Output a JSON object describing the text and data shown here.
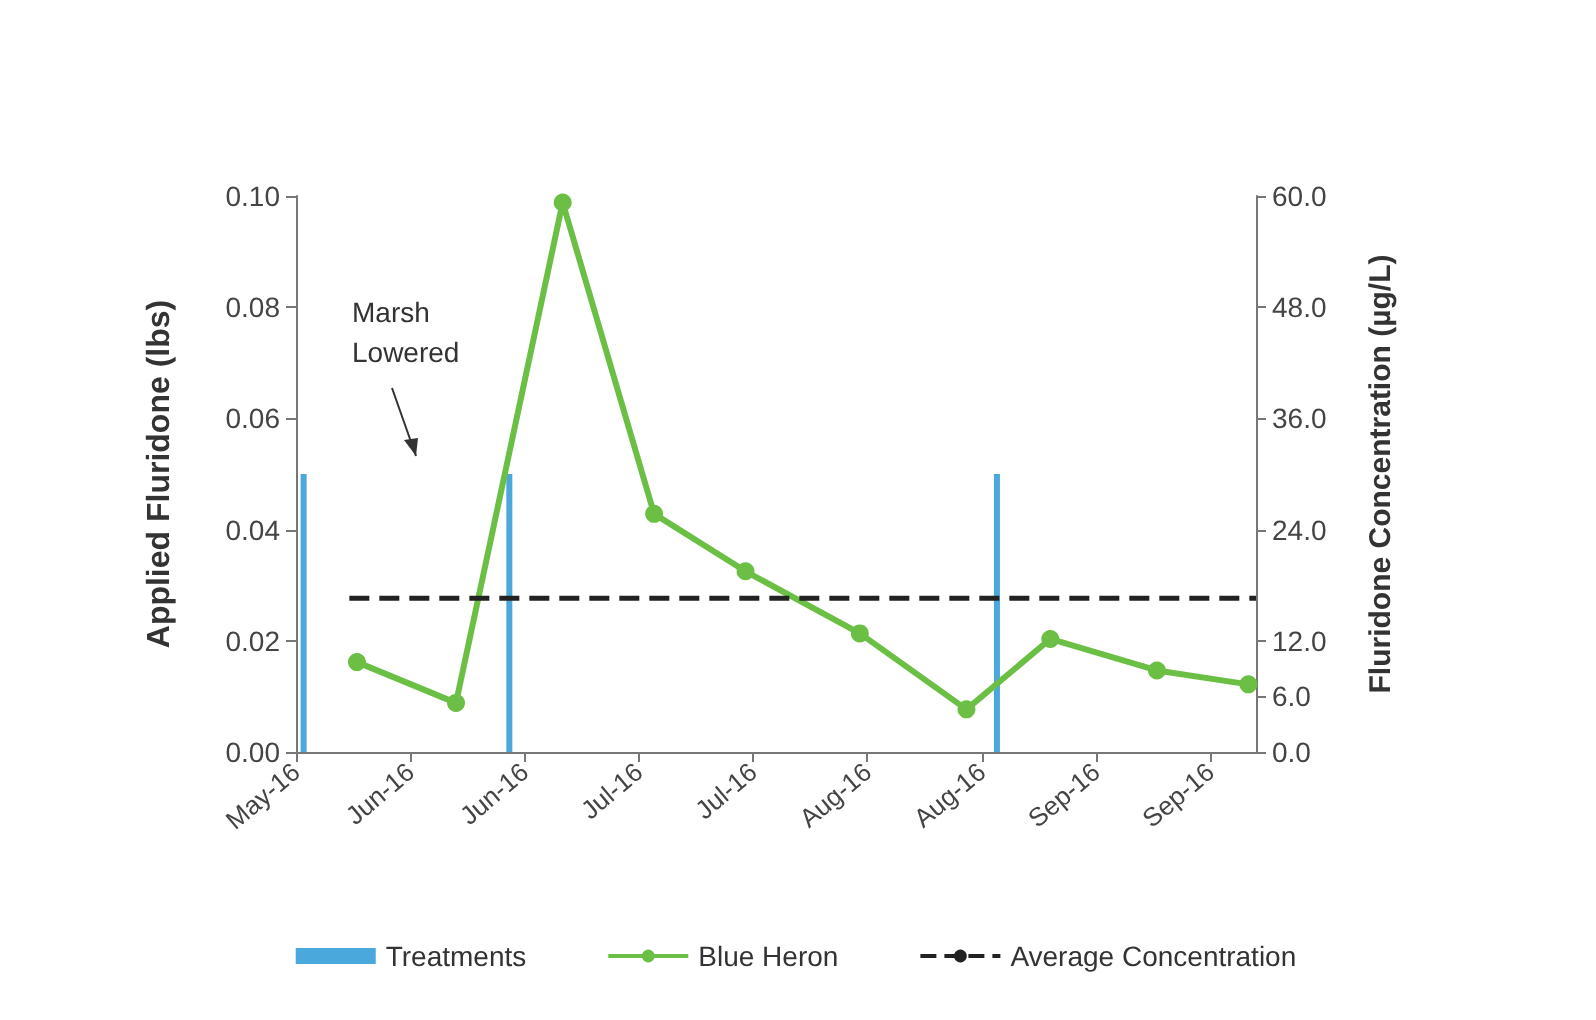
{
  "chart_data": {
    "type": "line",
    "ylabel": "Applied Fluridone (lbs)",
    "y2label": "Fluridone Concentration (µg/L)",
    "xlim": [
      "2016-05-20",
      "2016-09-23"
    ],
    "xticks": [
      {
        "value": "2016-05-20",
        "label": "May-16"
      },
      {
        "value": "2016-06-04",
        "label": "Jun-16"
      },
      {
        "value": "2016-06-19",
        "label": "Jun-16"
      },
      {
        "value": "2016-07-04",
        "label": "Jul-16"
      },
      {
        "value": "2016-07-19",
        "label": "Jul-16"
      },
      {
        "value": "2016-08-03",
        "label": "Aug-16"
      },
      {
        "value": "2016-08-18",
        "label": "Aug-16"
      },
      {
        "value": "2016-09-02",
        "label": "Sep-16"
      },
      {
        "value": "2016-09-17",
        "label": "Sep-16"
      }
    ],
    "ylim": [
      0,
      0.1
    ],
    "yticks": [
      {
        "value": 0,
        "label": "0.00"
      },
      {
        "value": 0.02,
        "label": "0.02"
      },
      {
        "value": 0.04,
        "label": "0.04"
      },
      {
        "value": 0.06,
        "label": "0.06"
      },
      {
        "value": 0.08,
        "label": "0.08"
      },
      {
        "value": 0.1,
        "label": "0.10"
      }
    ],
    "y2lim": [
      0,
      60
    ],
    "y2ticks": [
      {
        "value": 0,
        "label": "0.0"
      },
      {
        "value": 6,
        "label": "6.0"
      },
      {
        "value": 12,
        "label": "12.0"
      },
      {
        "value": 24,
        "label": "24.0"
      },
      {
        "value": 36,
        "label": "36.0"
      },
      {
        "value": 48,
        "label": "48.0"
      },
      {
        "value": 60,
        "label": "60.0"
      }
    ],
    "series": [
      {
        "name": "Treatments",
        "type": "bar",
        "color": "#4aa8dc",
        "x": [
          "2016-05-21",
          "2016-06-17",
          "2016-08-20"
        ],
        "values": [
          0.05,
          0.05,
          0.05
        ]
      },
      {
        "name": "Blue Heron",
        "axis": "y2",
        "color": "#6cbf45",
        "marker": "circle",
        "line_style": "solid",
        "x": [
          "2016-05-28",
          "2016-06-10",
          "2016-06-24",
          "2016-07-06",
          "2016-07-18",
          "2016-08-02",
          "2016-08-16",
          "2016-08-27",
          "2016-09-10",
          "2016-09-22"
        ],
        "values": [
          9.7,
          5.3,
          59.3,
          25.7,
          19.5,
          12.8,
          4.6,
          12.2,
          8.8,
          7.3
        ]
      },
      {
        "name": "Average Concentration",
        "type": "line",
        "axis": "y2",
        "color": "#222222",
        "marker": "none",
        "line_style": "dashed",
        "x": [
          "2016-05-27",
          "2016-09-23"
        ],
        "values": [
          16.6,
          16.6
        ]
      }
    ],
    "annotations": [
      "Marsh Lowered"
    ],
    "legend": "bottom",
    "grid": false
  }
}
